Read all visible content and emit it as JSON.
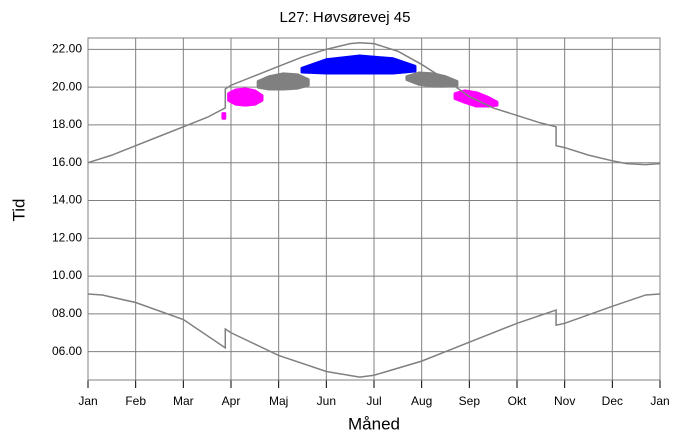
{
  "chart_data": {
    "type": "line",
    "title": "L27: Høvsørevej 45",
    "xlabel": "Måned",
    "ylabel": "Tid",
    "xlim": [
      0,
      12
    ],
    "xticks": [
      {
        "value": 0,
        "label": "Jan"
      },
      {
        "value": 1,
        "label": "Feb"
      },
      {
        "value": 2,
        "label": "Mar"
      },
      {
        "value": 3,
        "label": "Apr"
      },
      {
        "value": 4,
        "label": "Maj"
      },
      {
        "value": 5,
        "label": "Jun"
      },
      {
        "value": 6,
        "label": "Jul"
      },
      {
        "value": 7,
        "label": "Aug"
      },
      {
        "value": 8,
        "label": "Sep"
      },
      {
        "value": 9,
        "label": "Okt"
      },
      {
        "value": 10,
        "label": "Nov"
      },
      {
        "value": 11,
        "label": "Dec"
      },
      {
        "value": 12,
        "label": "Jan"
      }
    ],
    "ylim": [
      4.5,
      22.6
    ],
    "yticks": [
      {
        "value": 6,
        "label": "06.00"
      },
      {
        "value": 8,
        "label": "08.00"
      },
      {
        "value": 10,
        "label": "10.00"
      },
      {
        "value": 12,
        "label": "12.00"
      },
      {
        "value": 14,
        "label": "14.00"
      },
      {
        "value": 16,
        "label": "16.00"
      },
      {
        "value": 18,
        "label": "18.00"
      },
      {
        "value": 20,
        "label": "20.00"
      },
      {
        "value": 22,
        "label": "22.00"
      }
    ],
    "grid": true,
    "series": [
      {
        "color": "#808080",
        "x": [
          0,
          0.5,
          1,
          1.5,
          2,
          2.5,
          2.88,
          2.88,
          3,
          3.5,
          4,
          4.5,
          5,
          5.5,
          5.7,
          6,
          6.5,
          7,
          7.5,
          8,
          8.5,
          9,
          9.5,
          9.82,
          9.82,
          10,
          10.5,
          11,
          11.3,
          11.7,
          12
        ],
        "values": [
          16.0,
          16.4,
          16.9,
          17.4,
          17.9,
          18.4,
          18.9,
          19.9,
          20.1,
          20.6,
          21.1,
          21.6,
          22.0,
          22.3,
          22.35,
          22.3,
          21.9,
          21.2,
          20.4,
          19.5,
          18.9,
          18.5,
          18.1,
          17.9,
          16.9,
          16.8,
          16.4,
          16.1,
          15.95,
          15.9,
          15.95
        ]
      },
      {
        "color": "#808080",
        "x": [
          0,
          0.3,
          1,
          2,
          2.88,
          2.88,
          3,
          4,
          5,
          5.7,
          6,
          7,
          8,
          9,
          9.82,
          9.82,
          10,
          11,
          11.7,
          12
        ],
        "values": [
          9.05,
          9.0,
          8.6,
          7.7,
          6.2,
          7.2,
          7.0,
          5.8,
          4.95,
          4.65,
          4.75,
          5.5,
          6.5,
          7.5,
          8.2,
          7.4,
          7.5,
          8.4,
          9.0,
          9.05
        ]
      }
    ],
    "bands": [
      {
        "color": "#ff00ff",
        "x": [
          2.83,
          2.87
        ],
        "high": [
          18.6,
          18.6
        ],
        "low": [
          18.35,
          18.35
        ]
      },
      {
        "color": "#ff00ff",
        "x": [
          2.95,
          3.1,
          3.3,
          3.5,
          3.65
        ],
        "high": [
          19.65,
          19.85,
          19.9,
          19.8,
          19.55
        ],
        "low": [
          19.3,
          19.1,
          19.05,
          19.1,
          19.3
        ]
      },
      {
        "color": "#808080",
        "x": [
          3.57,
          3.8,
          4.1,
          4.4,
          4.62
        ],
        "high": [
          20.3,
          20.55,
          20.7,
          20.65,
          20.4
        ],
        "low": [
          20.0,
          19.9,
          19.9,
          19.95,
          20.1
        ]
      },
      {
        "color": "#0000ff",
        "x": [
          4.49,
          5.0,
          5.7,
          6.4,
          6.86
        ],
        "high": [
          21.0,
          21.45,
          21.65,
          21.5,
          21.1
        ],
        "low": [
          20.8,
          20.75,
          20.75,
          20.75,
          20.85
        ]
      },
      {
        "color": "#808080",
        "x": [
          6.69,
          6.95,
          7.25,
          7.5,
          7.74
        ],
        "high": [
          20.55,
          20.75,
          20.7,
          20.55,
          20.3
        ],
        "low": [
          20.4,
          20.15,
          20.05,
          20.05,
          20.1
        ]
      },
      {
        "color": "#ff00ff",
        "x": [
          7.7,
          7.9,
          8.15,
          8.4,
          8.58
        ],
        "high": [
          19.65,
          19.8,
          19.7,
          19.45,
          19.2
        ],
        "low": [
          19.4,
          19.2,
          19.0,
          19.0,
          19.05
        ]
      }
    ]
  }
}
